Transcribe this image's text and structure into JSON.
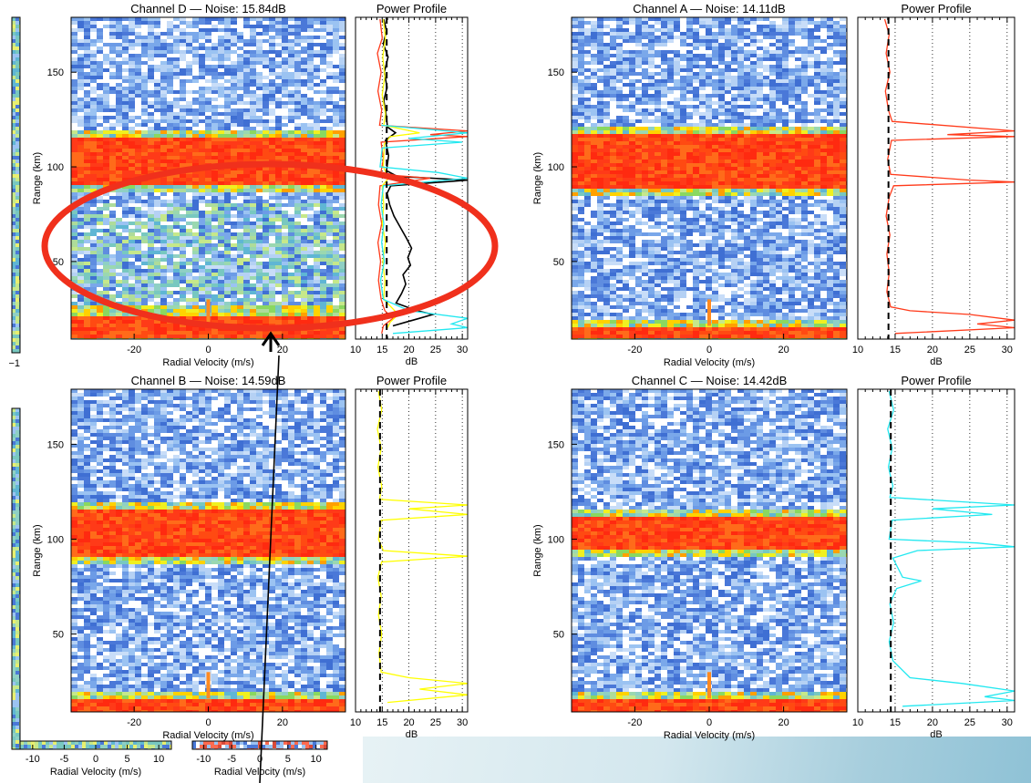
{
  "colors": {
    "ch_black": "#000000",
    "ch_red": "#ff3a1a",
    "ch_yellow": "#ffff00",
    "ch_cyan": "#22e8f0",
    "callout": "#f0301c",
    "arrow": "#000000"
  },
  "chart_data": [
    {
      "type": "heatmap",
      "title": "Channel D — Noise: 15.84dB",
      "xlabel": "Radial Velocity (m/s)",
      "ylabel": "Range (km)",
      "xlim": [
        -37,
        37
      ],
      "ylim": [
        9,
        179
      ],
      "xticks": [
        -20,
        0,
        20
      ],
      "yticks": [
        50,
        100,
        150
      ],
      "bands": [
        {
          "range": [
            90,
            115
          ],
          "level": "saturated"
        },
        {
          "range": [
            9,
            22
          ],
          "level": "saturated"
        }
      ],
      "enhanced": {
        "range": [
          22,
          80
        ],
        "level": "elevated"
      }
    },
    {
      "type": "line",
      "title": "Power Profile",
      "xlabel": "dB",
      "ylabel": "",
      "xlim": [
        10,
        31
      ],
      "ylim": [
        9,
        179
      ],
      "xticks": [
        10,
        15,
        20,
        25,
        30
      ],
      "noise_floor": 15.84,
      "series": [
        {
          "color": "black",
          "points": [
            [
              15.3,
              178
            ],
            [
              15.8,
              172
            ],
            [
              15.2,
              165
            ],
            [
              16.1,
              158
            ],
            [
              15.4,
              150
            ],
            [
              15.9,
              142
            ],
            [
              15.3,
              135
            ],
            [
              15.7,
              128
            ],
            [
              16.0,
              121
            ],
            [
              17.5,
              118
            ],
            [
              15.6,
              114
            ],
            [
              16.2,
              106
            ],
            [
              15.8,
              98
            ],
            [
              17.8,
              95
            ],
            [
              31,
              93
            ],
            [
              16.6,
              90
            ],
            [
              15.9,
              86
            ],
            [
              16.4,
              80
            ],
            [
              17.2,
              74
            ],
            [
              18.4,
              68
            ],
            [
              19.6,
              62
            ],
            [
              20.5,
              57
            ],
            [
              19.8,
              52
            ],
            [
              20.3,
              48
            ],
            [
              18.9,
              43
            ],
            [
              19.4,
              38
            ],
            [
              18.6,
              33
            ],
            [
              17.6,
              28
            ],
            [
              21.5,
              24
            ],
            [
              24.5,
              22
            ],
            [
              22.0,
              20
            ],
            [
              19.5,
              18
            ],
            [
              17.0,
              16
            ]
          ]
        },
        {
          "color": "red",
          "points": [
            [
              14.6,
              178
            ],
            [
              15.0,
              168
            ],
            [
              14.1,
              160
            ],
            [
              14.8,
              150
            ],
            [
              14.2,
              140
            ],
            [
              14.9,
              130
            ],
            [
              14.5,
              122
            ],
            [
              31,
              119
            ],
            [
              24.0,
              117
            ],
            [
              31,
              116
            ],
            [
              14.8,
              113
            ],
            [
              15.2,
              104
            ],
            [
              14.7,
              96
            ],
            [
              24.0,
              94
            ],
            [
              14.6,
              90
            ],
            [
              14.3,
              80
            ],
            [
              14.9,
              70
            ],
            [
              14.2,
              60
            ],
            [
              14.7,
              50
            ],
            [
              14.3,
              40
            ],
            [
              14.8,
              30
            ],
            [
              15.5,
              24
            ],
            [
              17.0,
              20
            ],
            [
              15.2,
              16
            ],
            [
              14.9,
              12
            ]
          ]
        },
        {
          "color": "yellow",
          "points": [
            [
              15.2,
              178
            ],
            [
              15.6,
              168
            ],
            [
              15.1,
              158
            ],
            [
              15.5,
              148
            ],
            [
              15.0,
              138
            ],
            [
              15.6,
              128
            ],
            [
              15.3,
              122
            ],
            [
              22.0,
              118
            ],
            [
              16.5,
              116
            ],
            [
              15.4,
              112
            ],
            [
              15.2,
              100
            ],
            [
              16.2,
              94
            ],
            [
              15.0,
              90
            ],
            [
              15.3,
              80
            ],
            [
              15.0,
              70
            ],
            [
              15.6,
              60
            ],
            [
              15.1,
              50
            ],
            [
              15.5,
              40
            ],
            [
              15.3,
              30
            ],
            [
              18.0,
              22
            ],
            [
              16.5,
              18
            ],
            [
              15.8,
              14
            ]
          ]
        },
        {
          "color": "cyan",
          "points": [
            [
              14.8,
              122
            ],
            [
              31,
              118
            ],
            [
              20.0,
              115
            ],
            [
              30.0,
              113
            ],
            [
              15.0,
              110
            ],
            [
              14.6,
              100
            ],
            [
              25.5,
              97
            ],
            [
              31,
              94
            ],
            [
              15.2,
              90
            ],
            [
              14.8,
              80
            ],
            [
              15.3,
              70
            ],
            [
              14.9,
              60
            ],
            [
              15.4,
              50
            ],
            [
              14.7,
              40
            ],
            [
              15.2,
              30
            ],
            [
              20.0,
              24
            ],
            [
              31,
              20
            ],
            [
              28.0,
              17
            ],
            [
              31,
              15
            ],
            [
              17.0,
              12
            ]
          ]
        }
      ]
    },
    {
      "type": "heatmap",
      "title": "Channel A — Noise: 14.11dB",
      "xlabel": "Radial Velocity (m/s)",
      "ylabel": "Range (km)",
      "xlim": [
        -37,
        37
      ],
      "ylim": [
        9,
        179
      ],
      "xticks": [
        -20,
        0,
        20
      ],
      "yticks": [
        50,
        100,
        150
      ],
      "bands": [
        {
          "range": [
            89,
            118
          ],
          "level": "saturated"
        },
        {
          "range": [
            9,
            16
          ],
          "level": "saturated"
        }
      ]
    },
    {
      "type": "line",
      "title": "Power Profile",
      "xlabel": "dB",
      "ylabel": "",
      "xlim": [
        10,
        31
      ],
      "ylim": [
        9,
        179
      ],
      "xticks": [
        10,
        15,
        20,
        25,
        30
      ],
      "noise_floor": 14.11,
      "series": [
        {
          "color": "red",
          "points": [
            [
              13.6,
              178
            ],
            [
              14.2,
              170
            ],
            [
              13.8,
              160
            ],
            [
              14.3,
              150
            ],
            [
              13.7,
              140
            ],
            [
              14.1,
              130
            ],
            [
              14.6,
              124
            ],
            [
              31,
              119
            ],
            [
              22.0,
              117
            ],
            [
              31,
              116
            ],
            [
              14.5,
              114
            ],
            [
              14.0,
              104
            ],
            [
              14.4,
              96
            ],
            [
              25.0,
              93
            ],
            [
              31,
              92
            ],
            [
              14.8,
              90
            ],
            [
              14.2,
              84
            ],
            [
              13.8,
              74
            ],
            [
              14.3,
              64
            ],
            [
              13.9,
              54
            ],
            [
              14.2,
              44
            ],
            [
              13.9,
              34
            ],
            [
              14.4,
              26
            ],
            [
              17.0,
              24
            ],
            [
              25.0,
              22
            ],
            [
              31,
              19
            ],
            [
              26.0,
              17
            ],
            [
              31,
              15
            ],
            [
              15.0,
              12
            ]
          ]
        }
      ]
    },
    {
      "type": "heatmap",
      "title": "Channel B — Noise: 14.59dB",
      "xlabel": "Radial Velocity (m/s)",
      "ylabel": "Range (km)",
      "xlim": [
        -37,
        37
      ],
      "ylim": [
        9,
        179
      ],
      "xticks": [
        -20,
        0,
        20
      ],
      "yticks": [
        50,
        100,
        150
      ],
      "bands": [
        {
          "range": [
            90,
            115
          ],
          "level": "saturated"
        },
        {
          "range": [
            9,
            16
          ],
          "level": "saturated"
        }
      ]
    },
    {
      "type": "line",
      "title": "Power Profile",
      "xlabel": "dB",
      "ylabel": "",
      "xlim": [
        10,
        31
      ],
      "ylim": [
        9,
        179
      ],
      "xticks": [
        10,
        15,
        20,
        25,
        30
      ],
      "noise_floor": 14.59,
      "series": [
        {
          "color": "yellow",
          "points": [
            [
              14.3,
              178
            ],
            [
              14.9,
              168
            ],
            [
              14.1,
              158
            ],
            [
              14.8,
              148
            ],
            [
              14.2,
              138
            ],
            [
              14.9,
              128
            ],
            [
              14.5,
              121
            ],
            [
              31,
              118
            ],
            [
              20.0,
              116
            ],
            [
              31,
              113
            ],
            [
              14.8,
              110
            ],
            [
              14.3,
              100
            ],
            [
              15.2,
              94
            ],
            [
              31,
              91
            ],
            [
              14.9,
              88
            ],
            [
              14.2,
              80
            ],
            [
              14.8,
              70
            ],
            [
              14.3,
              60
            ],
            [
              14.9,
              50
            ],
            [
              14.4,
              40
            ],
            [
              14.8,
              30
            ],
            [
              20.0,
              27
            ],
            [
              31,
              24
            ],
            [
              22.0,
              21
            ],
            [
              31,
              18
            ],
            [
              16.0,
              14
            ]
          ]
        }
      ]
    },
    {
      "type": "heatmap",
      "title": "Channel C — Noise: 14.42dB",
      "xlabel": "Radial Velocity (m/s)",
      "ylabel": "Range (km)",
      "xlim": [
        -37,
        37
      ],
      "ylim": [
        9,
        179
      ],
      "xticks": [
        -20,
        0,
        20
      ],
      "yticks": [
        50,
        100,
        150
      ],
      "bands": [
        {
          "range": [
            94,
            112
          ],
          "level": "saturated"
        },
        {
          "range": [
            9,
            16
          ],
          "level": "saturated"
        }
      ]
    },
    {
      "type": "line",
      "title": "Power Profile",
      "xlabel": "dB",
      "ylabel": "",
      "xlim": [
        10,
        31
      ],
      "ylim": [
        9,
        179
      ],
      "xticks": [
        10,
        15,
        20,
        25,
        30
      ],
      "noise_floor": 14.42,
      "series": [
        {
          "color": "cyan",
          "points": [
            [
              14.2,
              178
            ],
            [
              14.8,
              168
            ],
            [
              14.0,
              158
            ],
            [
              14.6,
              148
            ],
            [
              14.1,
              138
            ],
            [
              14.7,
              128
            ],
            [
              14.3,
              122
            ],
            [
              31,
              118
            ],
            [
              20.0,
              116
            ],
            [
              28.0,
              113
            ],
            [
              14.6,
              110
            ],
            [
              14.2,
              100
            ],
            [
              26.0,
              98
            ],
            [
              31,
              96
            ],
            [
              18.0,
              94
            ],
            [
              14.7,
              90
            ],
            [
              16.0,
              80
            ],
            [
              18.5,
              78
            ],
            [
              15.2,
              74
            ],
            [
              14.3,
              66
            ],
            [
              14.8,
              56
            ],
            [
              14.2,
              46
            ],
            [
              14.7,
              36
            ],
            [
              17.0,
              27
            ],
            [
              24.0,
              24
            ],
            [
              31,
              20
            ],
            [
              27.0,
              17
            ],
            [
              31,
              15
            ],
            [
              16.0,
              12
            ]
          ]
        }
      ]
    },
    {
      "type": "heatmap",
      "title": "",
      "xlabel": "",
      "ylabel": "",
      "xlim": [
        -12,
        12
      ],
      "ylim": [
        9,
        179
      ],
      "xticks": [],
      "yticks": [],
      "tick_label": "−1",
      "bands": []
    },
    {
      "type": "heatmap",
      "title": "",
      "xlabel": "Radial Velocity (m/s)",
      "ylabel": "",
      "xlim": [
        -12,
        12
      ],
      "ylim": [
        9,
        179
      ],
      "xticks": [
        -10,
        -5,
        0,
        5,
        10
      ],
      "yticks": [],
      "bands": []
    },
    {
      "type": "heatmap",
      "title": "",
      "xlabel": "Radial Velocity (m/s)",
      "ylabel": "",
      "xlim": [
        -12,
        12
      ],
      "ylim": [
        9,
        179
      ],
      "xticks": [
        -10,
        -5,
        0,
        5,
        10
      ],
      "yticks": [],
      "bands": []
    }
  ]
}
